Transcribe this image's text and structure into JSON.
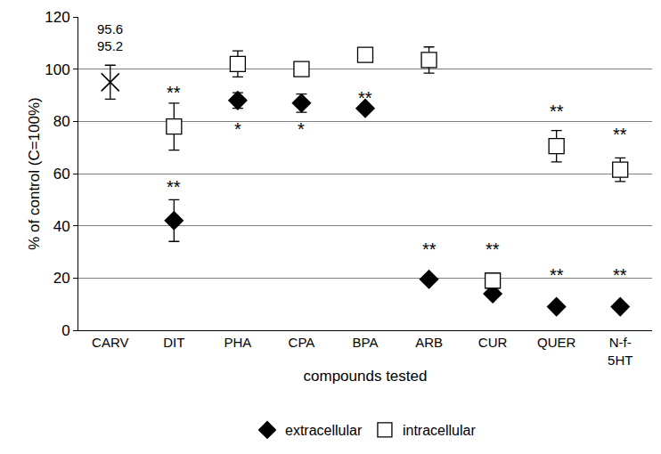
{
  "chart_data": {
    "type": "scatter",
    "x_label": "compounds tested",
    "y_label": "% of control (C=100%)",
    "categories": [
      "CARV",
      "DIT",
      "PHA",
      "CPA",
      "BPA",
      "ARB",
      "CUR",
      "QUER",
      "N-f-\n5HT"
    ],
    "ylim": [
      0,
      120
    ],
    "yticks": [
      0,
      20,
      40,
      60,
      80,
      100,
      120
    ],
    "grid": true,
    "legend": "bottom",
    "series": [
      {
        "name": "extracellular",
        "color": "#000000",
        "marker": "diamond",
        "values": [
          null,
          42,
          88,
          87,
          85,
          19.5,
          14,
          9,
          9
        ],
        "errors": [
          null,
          8,
          3,
          3.5,
          1.5,
          1,
          1,
          0.5,
          0.5
        ]
      },
      {
        "name": "intracellular",
        "color": "#000000",
        "marker": "square-open",
        "values": [
          null,
          78,
          102,
          100,
          105.5,
          103.5,
          19,
          70.5,
          61.5
        ],
        "errors": [
          null,
          9,
          5,
          1,
          1,
          5,
          1,
          6,
          4.5
        ]
      },
      {
        "color": "#000000",
        "marker": "x",
        "values": [
          95,
          null,
          null,
          null,
          null,
          null,
          null,
          null,
          null
        ],
        "errors": [
          6.5,
          null,
          null,
          null,
          null,
          null,
          null,
          null,
          null
        ]
      }
    ],
    "annotations": [
      {
        "category": "CARV",
        "y": 115.5,
        "text": "95.6"
      },
      {
        "category": "CARV",
        "y": 109,
        "text": "95.2"
      },
      {
        "category": "DIT",
        "y": 91,
        "text": "**"
      },
      {
        "category": "DIT",
        "y": 55,
        "text": "**"
      },
      {
        "category": "PHA",
        "y": 77,
        "text": "*"
      },
      {
        "category": "CPA",
        "y": 77,
        "text": "*"
      },
      {
        "category": "BPA",
        "y": 89,
        "text": "**"
      },
      {
        "category": "ARB",
        "y": 31,
        "text": "**"
      },
      {
        "category": "CUR",
        "y": 31,
        "text": "**"
      },
      {
        "category": "QUER",
        "y": 84,
        "text": "**"
      },
      {
        "category": "QUER",
        "y": 21,
        "text": "**"
      },
      {
        "category": "N-f-\n5HT",
        "y": 75,
        "text": "**"
      },
      {
        "category": "N-f-\n5HT",
        "y": 21,
        "text": "**"
      }
    ]
  }
}
